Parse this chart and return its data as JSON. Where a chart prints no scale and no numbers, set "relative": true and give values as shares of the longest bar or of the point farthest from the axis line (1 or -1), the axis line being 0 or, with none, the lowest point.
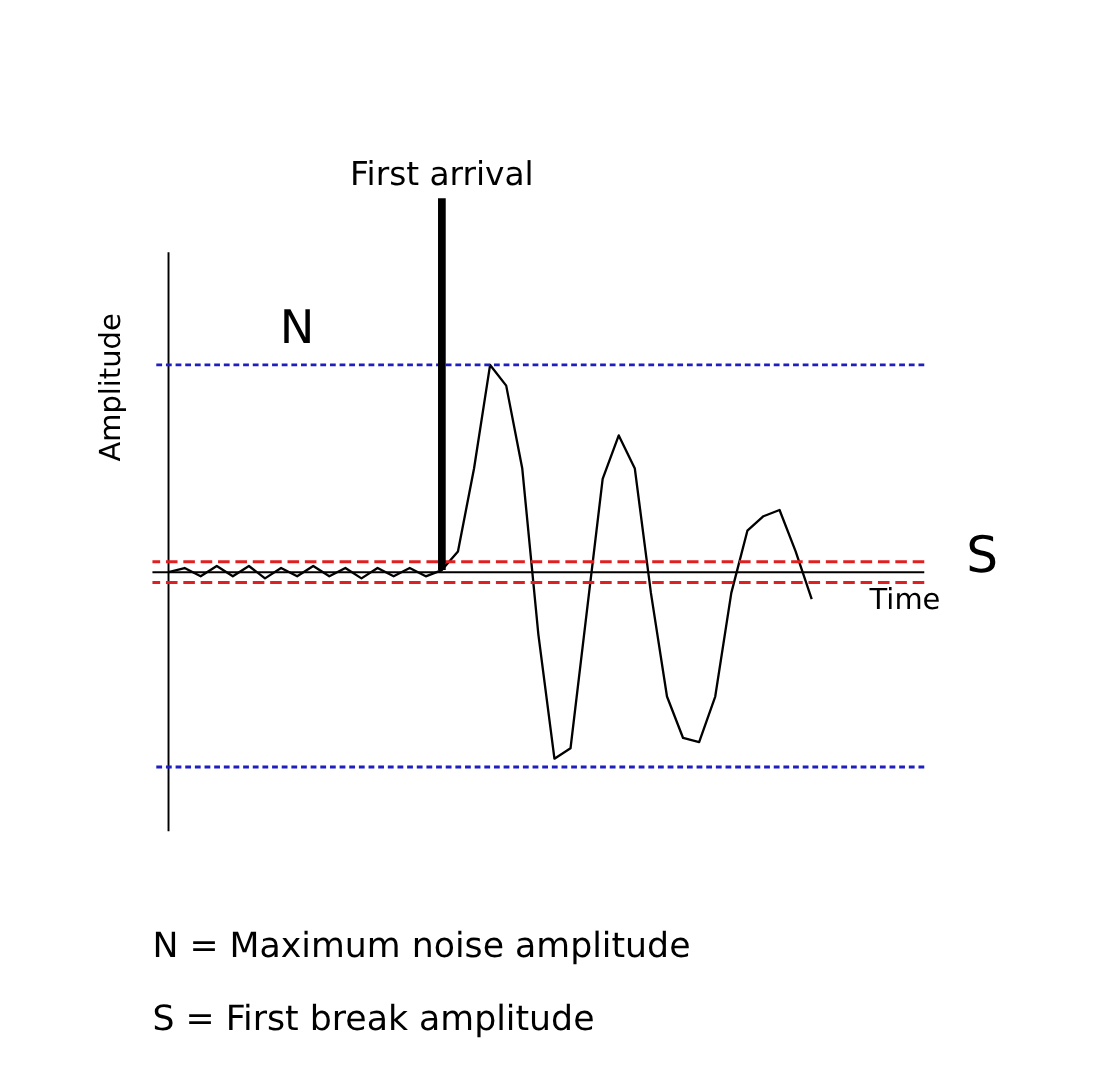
{
  "chart_data": {
    "type": "line",
    "relative": true,
    "xlabel": "Time",
    "ylabel": "Amplitude",
    "color": "#000000",
    "categories": [
      null,
      null,
      null,
      null,
      null,
      null,
      null,
      null,
      null,
      null,
      null,
      null,
      null,
      null,
      null,
      null,
      null,
      null,
      null,
      null,
      null,
      null,
      null,
      null,
      null,
      null,
      null,
      null,
      null,
      null,
      null,
      null,
      null,
      null,
      null,
      null,
      null,
      null,
      null,
      null,
      null
    ],
    "values": [
      0,
      0.02,
      -0.02,
      0.03,
      -0.02,
      0.03,
      -0.03,
      0.02,
      -0.02,
      0.03,
      -0.02,
      0.02,
      -0.03,
      0.02,
      -0.02,
      0.02,
      -0.02,
      0.01,
      0.1,
      0.5,
      1.0,
      0.9,
      0.5,
      -0.3,
      -0.9,
      -0.85,
      -0.2,
      0.45,
      0.66,
      0.5,
      -0.1,
      -0.6,
      -0.8,
      -0.82,
      -0.6,
      -0.1,
      0.2,
      0.27,
      0.3,
      0.1,
      -0.13
    ],
    "ref_lines": [
      {
        "axis": "y",
        "value": 1.0,
        "color": "#1f1fbf",
        "line_style": "dotted"
      },
      {
        "axis": "y",
        "value": -0.94,
        "color": "#1f1fbf",
        "line_style": "dotted"
      },
      {
        "axis": "y",
        "value": 0.05,
        "color": "#e02020",
        "line_style": "dashed"
      },
      {
        "axis": "y",
        "value": -0.05,
        "color": "#e02020",
        "line_style": "dashed"
      }
    ],
    "annotations": [
      "First arrival",
      "N",
      "S",
      "N = Maximum noise amplitude",
      "S = First break amplitude"
    ],
    "marker": "none"
  }
}
